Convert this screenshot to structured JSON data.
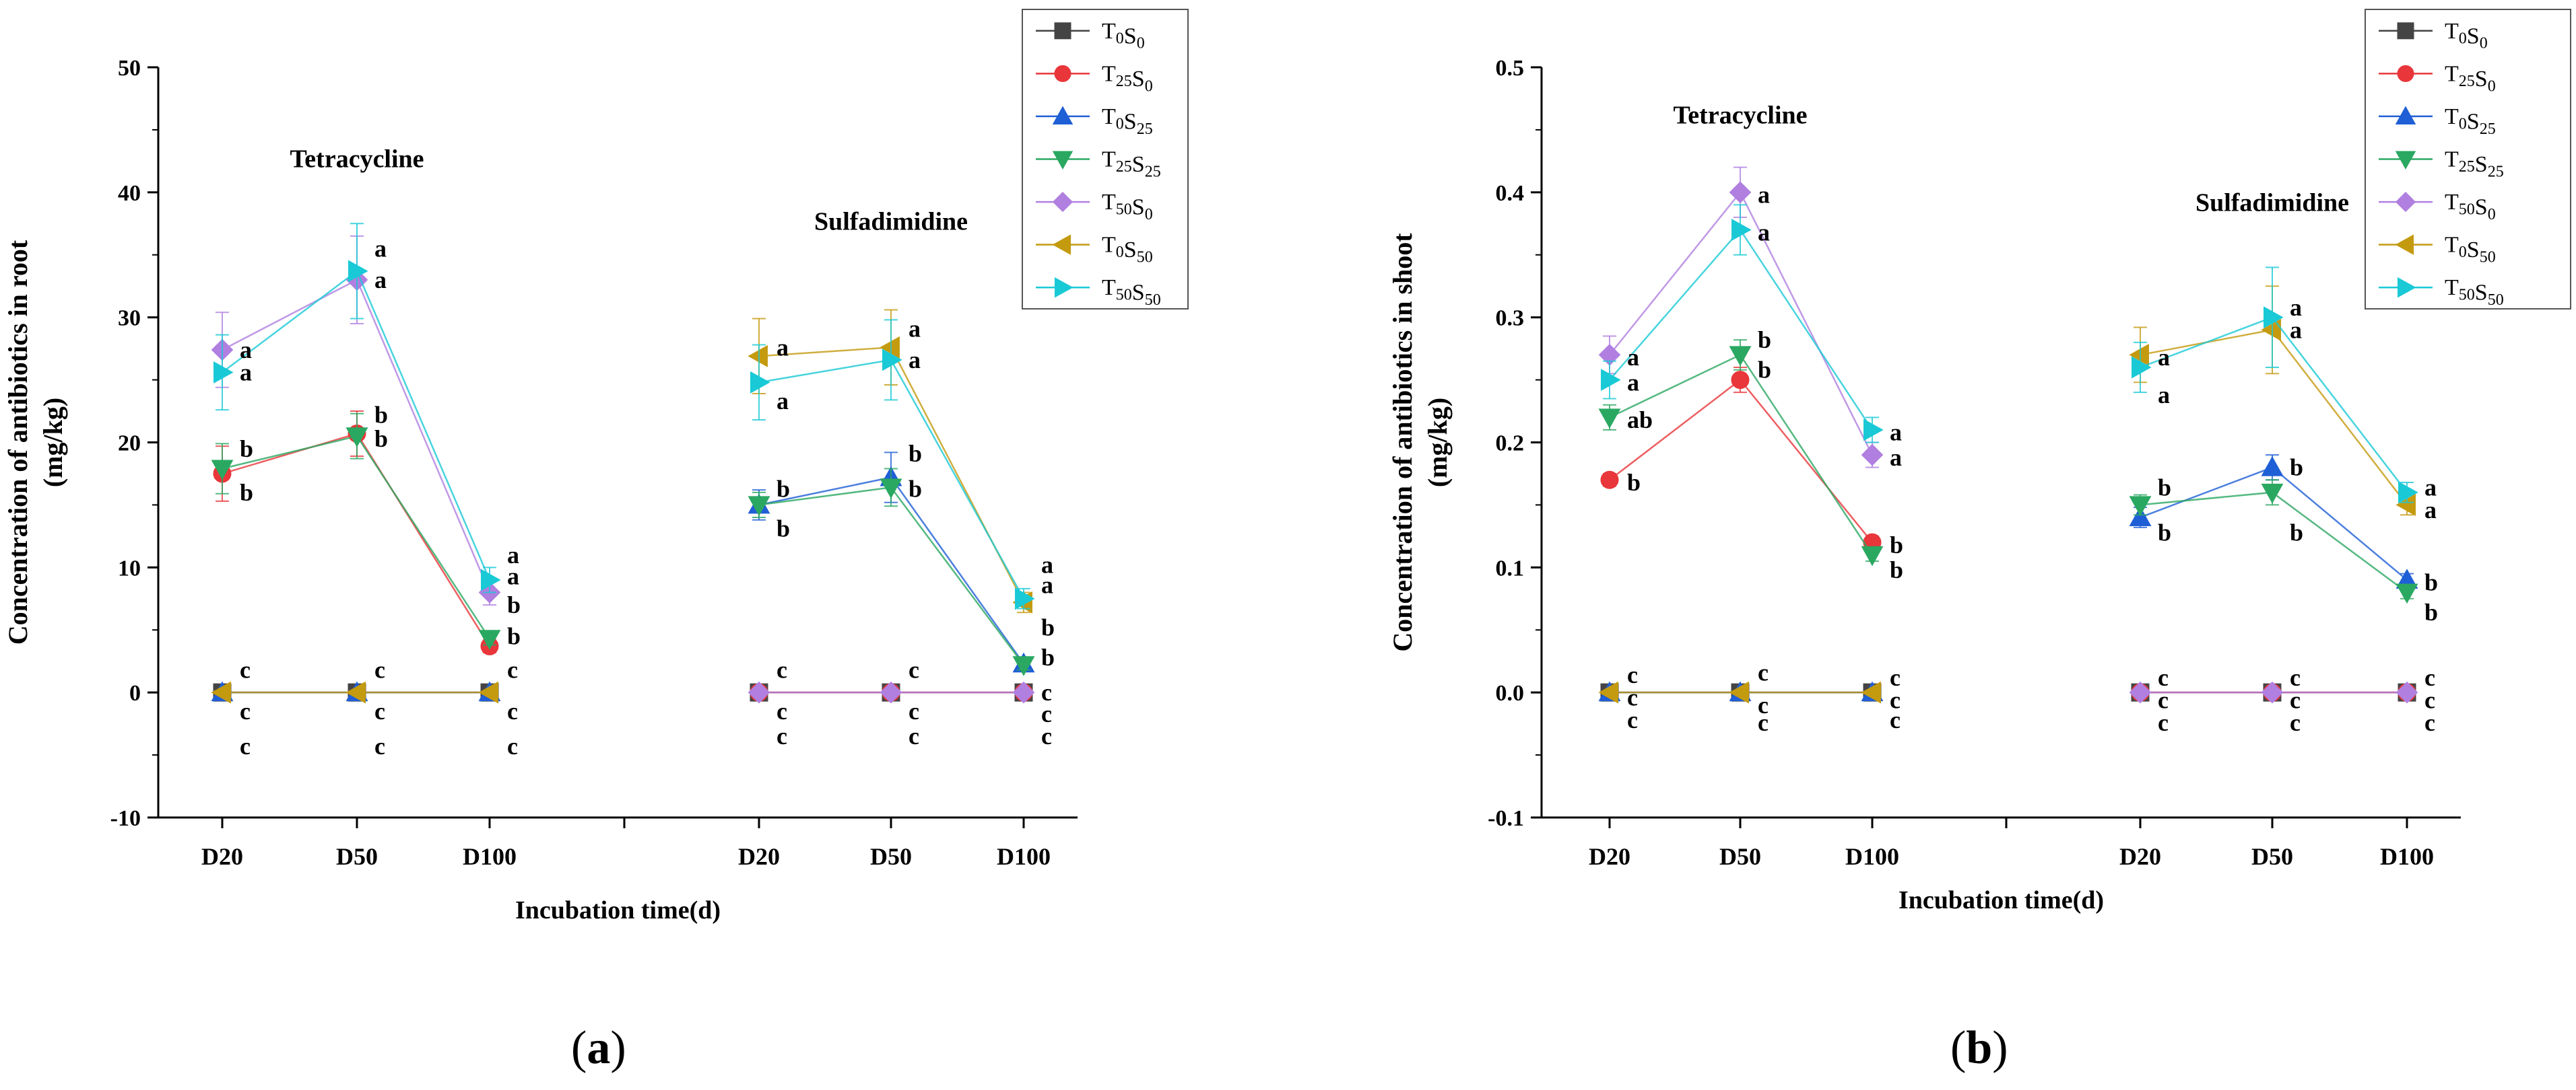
{
  "chart_data": [
    {
      "type": "line",
      "panel_label": "a",
      "ylabel": "Concentration of antibiotics in root (mg/kg)",
      "ylabel_line1": "Concentration of antibiotics in root",
      "ylabel_line2": "(mg/kg)",
      "xlabel": "Incubation time(d)",
      "ylim": [
        -10,
        50
      ],
      "yticks": [
        -10,
        0,
        10,
        20,
        30,
        40,
        50
      ],
      "categories": [
        "D20",
        "D50",
        "D100",
        "D20",
        "D50",
        "D100"
      ],
      "group_titles": [
        {
          "text": "Tetracycline",
          "center_slot": 1,
          "y": 42
        },
        {
          "text": "Sulfadimidine",
          "center_slot": 4,
          "y": 37
        }
      ],
      "grid": false,
      "legend": "top-right",
      "series": [
        {
          "name": "T0S0",
          "sub1": "0",
          "sub2": "0",
          "color": "#444444",
          "marker": "square",
          "groups": [
            [
              0,
              0,
              0
            ],
            [
              0,
              0,
              0
            ]
          ],
          "errors": [
            [
              0,
              0,
              0
            ],
            [
              0,
              0,
              0
            ]
          ]
        },
        {
          "name": "T25S0",
          "sub1": "25",
          "sub2": "0",
          "color": "#e8363a",
          "marker": "circle",
          "groups": [
            [
              17.5,
              20.7,
              3.7
            ],
            [
              0,
              0,
              0
            ]
          ],
          "errors": [
            [
              2.2,
              1.8,
              0.5
            ],
            [
              0,
              0,
              0
            ]
          ]
        },
        {
          "name": "T0S25",
          "sub1": "0",
          "sub2": "25",
          "color": "#1f5fd6",
          "marker": "triangle-up",
          "groups": [
            [
              0,
              0,
              0
            ],
            [
              15.0,
              17.2,
              2.3
            ]
          ],
          "errors": [
            [
              0,
              0,
              0
            ],
            [
              1.2,
              2.0,
              0.4
            ]
          ]
        },
        {
          "name": "T25S25",
          "sub1": "25",
          "sub2": "25",
          "color": "#2aa861",
          "marker": "triangle-down",
          "groups": [
            [
              17.9,
              20.5,
              4.3
            ],
            [
              15.0,
              16.4,
              2.2
            ]
          ],
          "errors": [
            [
              2.0,
              1.8,
              0.5
            ],
            [
              1.0,
              1.5,
              0.4
            ]
          ]
        },
        {
          "name": "T50S0",
          "sub1": "50",
          "sub2": "0",
          "color": "#b07fe0",
          "marker": "diamond",
          "groups": [
            [
              27.4,
              33.0,
              8.0
            ],
            [
              0,
              0,
              0
            ]
          ],
          "errors": [
            [
              3.0,
              3.5,
              1.0
            ],
            [
              0,
              0,
              0
            ]
          ]
        },
        {
          "name": "T0S50",
          "sub1": "0",
          "sub2": "50",
          "color": "#c49a0f",
          "marker": "triangle-left",
          "groups": [
            [
              0,
              0,
              0
            ],
            [
              26.9,
              27.6,
              7.2
            ]
          ],
          "errors": [
            [
              0,
              0,
              0
            ],
            [
              3.0,
              3.0,
              0.8
            ]
          ]
        },
        {
          "name": "T50S50",
          "sub1": "50",
          "sub2": "50",
          "color": "#19c9d6",
          "marker": "triangle-right",
          "groups": [
            [
              25.6,
              33.7,
              9.0
            ],
            [
              24.8,
              26.6,
              7.5
            ]
          ],
          "errors": [
            [
              3.0,
              3.8,
              1.0
            ],
            [
              3.0,
              3.2,
              0.8
            ]
          ]
        }
      ],
      "annotations": [
        {
          "t": "a",
          "slot": 0,
          "v": 27.4
        },
        {
          "t": "a",
          "slot": 0,
          "v": 25.6
        },
        {
          "t": "b",
          "slot": 0,
          "v": 19.5
        },
        {
          "t": "b",
          "slot": 0,
          "v": 16.0
        },
        {
          "t": "c",
          "slot": 0,
          "v": 1.8
        },
        {
          "t": "c",
          "slot": 0,
          "v": -1.5
        },
        {
          "t": "c",
          "slot": 0,
          "v": -4.3
        },
        {
          "t": "a",
          "slot": 1,
          "v": 35.5
        },
        {
          "t": "a",
          "slot": 1,
          "v": 33.0
        },
        {
          "t": "b",
          "slot": 1,
          "v": 22.2
        },
        {
          "t": "b",
          "slot": 1,
          "v": 20.3
        },
        {
          "t": "c",
          "slot": 1,
          "v": 1.8
        },
        {
          "t": "c",
          "slot": 1,
          "v": -1.5
        },
        {
          "t": "c",
          "slot": 1,
          "v": -4.3
        },
        {
          "t": "a",
          "slot": 2,
          "v": 11.0
        },
        {
          "t": "a",
          "slot": 2,
          "v": 9.3
        },
        {
          "t": "b",
          "slot": 2,
          "v": 7.0
        },
        {
          "t": "b",
          "slot": 2,
          "v": 4.5
        },
        {
          "t": "c",
          "slot": 2,
          "v": 1.8
        },
        {
          "t": "c",
          "slot": 2,
          "v": -1.5
        },
        {
          "t": "c",
          "slot": 2,
          "v": -4.3
        },
        {
          "t": "a",
          "slot": 3,
          "v": 27.6
        },
        {
          "t": "a",
          "slot": 3,
          "v": 23.3
        },
        {
          "t": "b",
          "slot": 3,
          "v": 16.3
        },
        {
          "t": "b",
          "slot": 3,
          "v": 13.1
        },
        {
          "t": "c",
          "slot": 3,
          "v": 1.8
        },
        {
          "t": "c",
          "slot": 3,
          "v": -1.5
        },
        {
          "t": "c",
          "slot": 3,
          "v": -3.5
        },
        {
          "t": "a",
          "slot": 4,
          "v": 29.1
        },
        {
          "t": "a",
          "slot": 4,
          "v": 26.6
        },
        {
          "t": "b",
          "slot": 4,
          "v": 19.1
        },
        {
          "t": "b",
          "slot": 4,
          "v": 16.3
        },
        {
          "t": "c",
          "slot": 4,
          "v": 1.8
        },
        {
          "t": "c",
          "slot": 4,
          "v": -1.5
        },
        {
          "t": "c",
          "slot": 4,
          "v": -3.5
        },
        {
          "t": "a",
          "slot": 5,
          "v": 10.2
        },
        {
          "t": "a",
          "slot": 5,
          "v": 8.6
        },
        {
          "t": "b",
          "slot": 5,
          "v": 5.2
        },
        {
          "t": "b",
          "slot": 5,
          "v": 2.8
        },
        {
          "t": "c",
          "slot": 5,
          "v": 0.0
        },
        {
          "t": "c",
          "slot": 5,
          "v": -1.7
        },
        {
          "t": "c",
          "slot": 5,
          "v": -3.5
        }
      ]
    },
    {
      "type": "line",
      "panel_label": "b",
      "ylabel": "Concentration of antibiotics in shoot (mg/kg)",
      "ylabel_line1": "Concentration of antibiotics in shoot",
      "ylabel_line2": "(mg/kg)",
      "xlabel": "Incubation time(d)",
      "ylim": [
        -0.1,
        0.5
      ],
      "yticks": [
        -0.1,
        0.0,
        0.1,
        0.2,
        0.3,
        0.4,
        0.5
      ],
      "ytick_labels": [
        "-0.1",
        "0.0",
        "0.1",
        "0.2",
        "0.3",
        "0.4",
        "0.5"
      ],
      "categories": [
        "D20",
        "D50",
        "D100",
        "D20",
        "D50",
        "D100"
      ],
      "group_titles": [
        {
          "text": "Tetracycline",
          "center_slot": 1,
          "y": 0.455
        },
        {
          "text": "Sulfadimidine",
          "center_slot": 4,
          "y": 0.385
        }
      ],
      "grid": false,
      "legend": "top-right",
      "series": [
        {
          "name": "T0S0",
          "sub1": "0",
          "sub2": "0",
          "color": "#444444",
          "marker": "square",
          "groups": [
            [
              0,
              0,
              0
            ],
            [
              0,
              0,
              0
            ]
          ],
          "errors": [
            [
              0,
              0,
              0
            ],
            [
              0,
              0,
              0
            ]
          ]
        },
        {
          "name": "T25S0",
          "sub1": "25",
          "sub2": "0",
          "color": "#e8363a",
          "marker": "circle",
          "groups": [
            [
              0.17,
              0.25,
              0.12
            ],
            [
              0,
              0,
              0
            ]
          ],
          "errors": [
            [
              0.005,
              0.01,
              0.005
            ],
            [
              0,
              0,
              0
            ]
          ]
        },
        {
          "name": "T0S25",
          "sub1": "0",
          "sub2": "25",
          "color": "#1f5fd6",
          "marker": "triangle-up",
          "groups": [
            [
              0,
              0,
              0
            ],
            [
              0.14,
              0.18,
              0.09
            ]
          ],
          "errors": [
            [
              0,
              0,
              0
            ],
            [
              0.008,
              0.01,
              0.005
            ]
          ]
        },
        {
          "name": "T25S25",
          "sub1": "25",
          "sub2": "25",
          "color": "#2aa861",
          "marker": "triangle-down",
          "groups": [
            [
              0.22,
              0.27,
              0.11
            ],
            [
              0.15,
              0.16,
              0.08
            ]
          ],
          "errors": [
            [
              0.01,
              0.012,
              0.005
            ],
            [
              0.008,
              0.01,
              0.005
            ]
          ]
        },
        {
          "name": "T50S0",
          "sub1": "50",
          "sub2": "0",
          "color": "#b07fe0",
          "marker": "diamond",
          "groups": [
            [
              0.27,
              0.4,
              0.19
            ],
            [
              0,
              0,
              0
            ]
          ],
          "errors": [
            [
              0.015,
              0.02,
              0.01
            ],
            [
              0,
              0,
              0
            ]
          ]
        },
        {
          "name": "T0S50",
          "sub1": "0",
          "sub2": "50",
          "color": "#c49a0f",
          "marker": "triangle-left",
          "groups": [
            [
              0,
              0,
              0
            ],
            [
              0.27,
              0.29,
              0.15
            ]
          ],
          "errors": [
            [
              0,
              0,
              0
            ],
            [
              0.022,
              0.035,
              0.008
            ]
          ]
        },
        {
          "name": "T50S50",
          "sub1": "50",
          "sub2": "50",
          "color": "#19c9d6",
          "marker": "triangle-right",
          "groups": [
            [
              0.25,
              0.37,
              0.21
            ],
            [
              0.26,
              0.3,
              0.16
            ]
          ],
          "errors": [
            [
              0.015,
              0.02,
              0.01
            ],
            [
              0.02,
              0.04,
              0.008
            ]
          ]
        }
      ],
      "annotations": [
        {
          "t": "a",
          "slot": 0,
          "v": 0.268
        },
        {
          "t": "a",
          "slot": 0,
          "v": 0.248
        },
        {
          "t": "ab",
          "slot": 0,
          "v": 0.218
        },
        {
          "t": "b",
          "slot": 0,
          "v": 0.168
        },
        {
          "t": "c",
          "slot": 0,
          "v": 0.014
        },
        {
          "t": "c",
          "slot": 0,
          "v": -0.004
        },
        {
          "t": "c",
          "slot": 0,
          "v": -0.022
        },
        {
          "t": "a",
          "slot": 1,
          "v": 0.398
        },
        {
          "t": "a",
          "slot": 1,
          "v": 0.368
        },
        {
          "t": "b",
          "slot": 1,
          "v": 0.282
        },
        {
          "t": "b",
          "slot": 1,
          "v": 0.258
        },
        {
          "t": "c",
          "slot": 1,
          "v": 0.016
        },
        {
          "t": "c",
          "slot": 1,
          "v": -0.01
        },
        {
          "t": "c",
          "slot": 1,
          "v": -0.024
        },
        {
          "t": "a",
          "slot": 2,
          "v": 0.208
        },
        {
          "t": "a",
          "slot": 2,
          "v": 0.188
        },
        {
          "t": "b",
          "slot": 2,
          "v": 0.118
        },
        {
          "t": "b",
          "slot": 2,
          "v": 0.098
        },
        {
          "t": "c",
          "slot": 2,
          "v": 0.012
        },
        {
          "t": "c",
          "slot": 2,
          "v": -0.006
        },
        {
          "t": "c",
          "slot": 2,
          "v": -0.022
        },
        {
          "t": "a",
          "slot": 3,
          "v": 0.268
        },
        {
          "t": "a",
          "slot": 3,
          "v": 0.238
        },
        {
          "t": "b",
          "slot": 3,
          "v": 0.164
        },
        {
          "t": "b",
          "slot": 3,
          "v": 0.128
        },
        {
          "t": "c",
          "slot": 3,
          "v": 0.012
        },
        {
          "t": "c",
          "slot": 3,
          "v": -0.006
        },
        {
          "t": "c",
          "slot": 3,
          "v": -0.024
        },
        {
          "t": "a",
          "slot": 4,
          "v": 0.308
        },
        {
          "t": "a",
          "slot": 4,
          "v": 0.29
        },
        {
          "t": "b",
          "slot": 4,
          "v": 0.18
        },
        {
          "t": "b",
          "slot": 4,
          "v": 0.128
        },
        {
          "t": "c",
          "slot": 4,
          "v": 0.012
        },
        {
          "t": "c",
          "slot": 4,
          "v": -0.006
        },
        {
          "t": "c",
          "slot": 4,
          "v": -0.024
        },
        {
          "t": "a",
          "slot": 5,
          "v": 0.164
        },
        {
          "t": "a",
          "slot": 5,
          "v": 0.146
        },
        {
          "t": "b",
          "slot": 5,
          "v": 0.088
        },
        {
          "t": "b",
          "slot": 5,
          "v": 0.064
        },
        {
          "t": "c",
          "slot": 5,
          "v": 0.012
        },
        {
          "t": "c",
          "slot": 5,
          "v": -0.006
        },
        {
          "t": "c",
          "slot": 5,
          "v": -0.024
        }
      ]
    }
  ]
}
